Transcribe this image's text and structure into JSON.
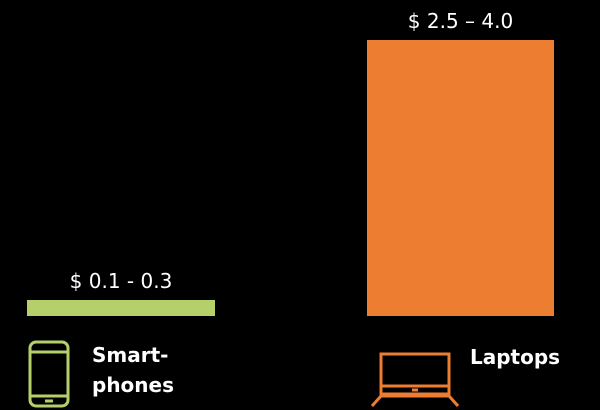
{
  "chart_data": {
    "type": "bar",
    "categories": [
      "Smart-phones",
      "Laptops"
    ],
    "category_lines": [
      [
        "Smart-",
        "phones"
      ],
      [
        "Laptops"
      ]
    ],
    "ranges": [
      [
        0.1,
        0.3
      ],
      [
        2.5,
        4.0
      ]
    ],
    "value_labels": [
      "$ 0.1 - 0.3",
      "$ 2.5 – 4.0"
    ],
    "colors": [
      "#b5cf6b",
      "#ed7d31"
    ],
    "icons": [
      "smartphone-icon",
      "laptop-icon"
    ],
    "ylim": [
      0,
      4.0
    ],
    "grid": false,
    "legend": "none",
    "title": "",
    "xlabel": "",
    "ylabel": ""
  }
}
